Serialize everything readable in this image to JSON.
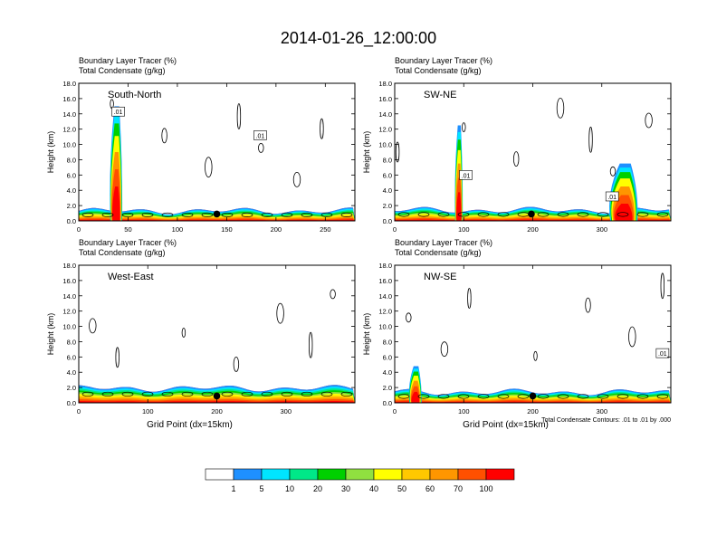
{
  "figure_title": "2014-01-26_12:00:00",
  "chart_data": [
    {
      "type": "heatmap",
      "panel_title": "South-North",
      "left_label_1": "Boundary Layer Tracer   (%)",
      "left_label_2": "Total Condensate   (g/kg)",
      "ylabel": "Height (km)",
      "xlabel": "",
      "xlim": [
        0,
        280
      ],
      "ylim": [
        0,
        18
      ],
      "xticks": [
        "0",
        "50",
        "100",
        "150",
        "200",
        "250"
      ],
      "xtick_values": [
        0,
        50,
        100,
        150,
        200,
        250
      ],
      "yticks": [
        "0.0",
        "2.0",
        "4.0",
        "6.0",
        "8.0",
        "10.0",
        "12.0",
        "14.0",
        "16.0",
        "18.0"
      ],
      "ytick_values": [
        0,
        2,
        4,
        6,
        8,
        10,
        12,
        14,
        16,
        18
      ],
      "contour_labels": [
        {
          "text": ".01",
          "x": 40,
          "y": 14.3
        },
        {
          "text": ".01",
          "x": 184,
          "y": 11.2
        }
      ],
      "marker_x": 140,
      "pbl_top_km": 1.3,
      "plumes": [
        {
          "x": 38,
          "width": 11,
          "top": 15
        }
      ]
    },
    {
      "type": "heatmap",
      "panel_title": "SW-NE",
      "left_label_1": "Boundary Layer Tracer   (%)",
      "left_label_2": "Total Condensate   (g/kg)",
      "ylabel": "Height (km)",
      "xlabel": "",
      "xlim": [
        0,
        400
      ],
      "ylim": [
        0,
        18
      ],
      "xticks": [
        "0",
        "100",
        "200",
        "300"
      ],
      "xtick_values": [
        0,
        100,
        200,
        300
      ],
      "yticks": [
        "0.0",
        "2.0",
        "4.0",
        "6.0",
        "8.0",
        "10.0",
        "12.0",
        "14.0",
        "16.0",
        "18.0"
      ],
      "ytick_values": [
        0,
        2,
        4,
        6,
        8,
        10,
        12,
        14,
        16,
        18
      ],
      "contour_labels": [
        {
          "text": ".01",
          "x": 103,
          "y": 6.0
        },
        {
          "text": ".01",
          "x": 315,
          "y": 3.2
        }
      ],
      "marker_x": 198,
      "pbl_top_km": 1.4,
      "plumes": [
        {
          "x": 93,
          "width": 10,
          "top": 12.5
        },
        {
          "x": 332,
          "width": 36,
          "top": 7.5
        }
      ]
    },
    {
      "type": "heatmap",
      "panel_title": "West-East",
      "left_label_1": "Boundary Layer Tracer   (%)",
      "left_label_2": "Total Condensate   (g/kg)",
      "ylabel": "Height (km)",
      "xlabel": "Grid Point (dx=15km)",
      "xlim": [
        0,
        400
      ],
      "ylim": [
        0,
        18
      ],
      "xticks": [
        "0",
        "100",
        "200",
        "300"
      ],
      "xtick_values": [
        0,
        100,
        200,
        300
      ],
      "yticks": [
        "0.0",
        "2.0",
        "4.0",
        "6.0",
        "8.0",
        "10.0",
        "12.0",
        "14.0",
        "16.0",
        "18.0"
      ],
      "ytick_values": [
        0,
        2,
        4,
        6,
        8,
        10,
        12,
        14,
        16,
        18
      ],
      "contour_labels": [],
      "marker_x": 200,
      "pbl_top_km": 1.9,
      "plumes": []
    },
    {
      "type": "heatmap",
      "panel_title": "NW-SE",
      "left_label_1": "Boundary Layer Tracer   (%)",
      "left_label_2": "Total Condensate   (g/kg)",
      "ylabel": "Height (km)",
      "xlabel": "Grid Point (dx=15km)",
      "xlim": [
        0,
        400
      ],
      "ylim": [
        0,
        18
      ],
      "xticks": [
        "0",
        "100",
        "200",
        "300"
      ],
      "xtick_values": [
        0,
        100,
        200,
        300
      ],
      "yticks": [
        "0.0",
        "2.0",
        "4.0",
        "6.0",
        "8.0",
        "10.0",
        "12.0",
        "14.0",
        "16.0",
        "18.0"
      ],
      "ytick_values": [
        0,
        2,
        4,
        6,
        8,
        10,
        12,
        14,
        16,
        18
      ],
      "contour_labels": [
        {
          "text": ".01",
          "x": 388,
          "y": 6.5
        }
      ],
      "marker_x": 200,
      "pbl_top_km": 1.4,
      "plumes": [
        {
          "x": 30,
          "width": 16,
          "top": 4.8
        }
      ],
      "contour_note": "Total Condensate Contours: .01 to .01 by .000"
    }
  ],
  "colorbar": {
    "labels": [
      "1",
      "5",
      "10",
      "20",
      "30",
      "40",
      "50",
      "60",
      "70",
      "100"
    ],
    "colors": [
      "#ffffff",
      "#1e90ff",
      "#00e5ff",
      "#00e888",
      "#00d000",
      "#90e040",
      "#ffff00",
      "#ffc800",
      "#ff9600",
      "#ff5000",
      "#ff0000"
    ]
  }
}
